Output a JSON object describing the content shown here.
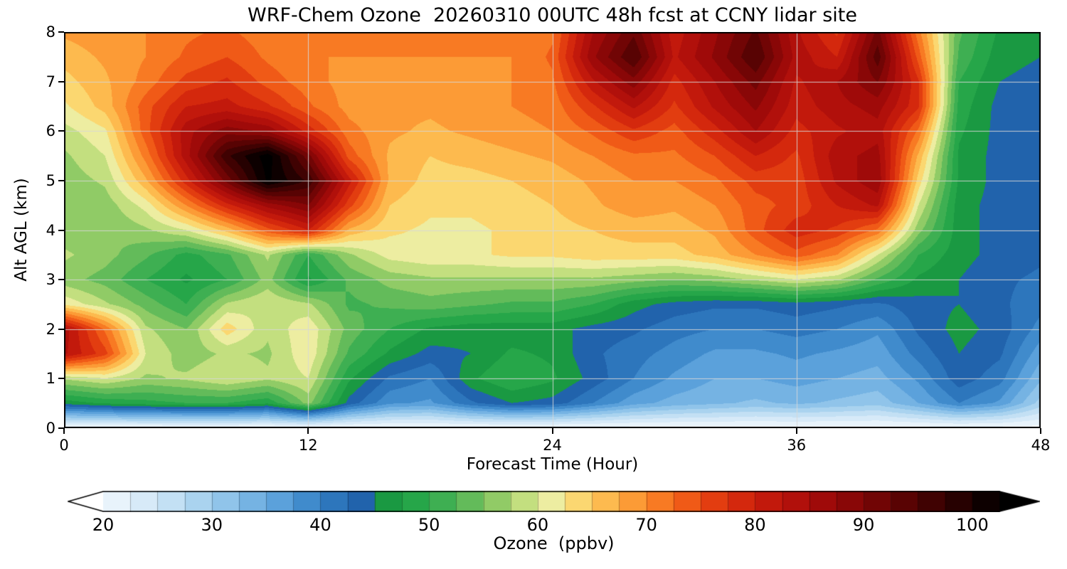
{
  "background": "#ffffff",
  "colorbar": {
    "label": "Ozone  (ppbv)",
    "ticks": [
      20,
      30,
      40,
      50,
      60,
      70,
      80,
      90,
      100
    ],
    "range": [
      20,
      102.5
    ],
    "extend": "both",
    "levels": {
      "min": 17.5,
      "max": 102.5,
      "step": 2.5
    }
  },
  "axes": {
    "x_ticks": [
      0,
      12,
      24,
      36,
      48
    ],
    "y_ticks": [
      0,
      1,
      2,
      3,
      4,
      5,
      6,
      7,
      8
    ],
    "x_range": [
      0,
      48
    ],
    "y_range": [
      0,
      8
    ],
    "grid_x": [
      12,
      24,
      36
    ],
    "grid_y": [
      1,
      2,
      3,
      4,
      5,
      6,
      7
    ]
  },
  "colormap": [
    [
      17.5,
      "#ffffff"
    ],
    [
      21.0,
      "#eaf4fb"
    ],
    [
      25.0,
      "#cfe6f6"
    ],
    [
      29.0,
      "#a8d2ef"
    ],
    [
      33.0,
      "#7db9e6"
    ],
    [
      37.0,
      "#539bd8"
    ],
    [
      40.0,
      "#3380c4"
    ],
    [
      43.0,
      "#2468b0"
    ],
    [
      44.9,
      "#1d5ca6"
    ],
    [
      45.1,
      "#17923e"
    ],
    [
      48.0,
      "#1fa347"
    ],
    [
      52.0,
      "#45b254"
    ],
    [
      55.0,
      "#79c25f"
    ],
    [
      57.5,
      "#a8d46c"
    ],
    [
      59.5,
      "#d3e68b"
    ],
    [
      61.5,
      "#f1eea4"
    ],
    [
      63.5,
      "#fbda74"
    ],
    [
      66.0,
      "#fdbd51"
    ],
    [
      68.5,
      "#fc9e38"
    ],
    [
      71.0,
      "#f97d24"
    ],
    [
      73.5,
      "#f15d18"
    ],
    [
      76.0,
      "#e43f10"
    ],
    [
      79.0,
      "#d2260d"
    ],
    [
      82.0,
      "#bd150c"
    ],
    [
      85.5,
      "#a50b0a"
    ],
    [
      89.0,
      "#870707"
    ],
    [
      92.5,
      "#650404"
    ],
    [
      96.0,
      "#420202"
    ],
    [
      99.5,
      "#1f0101"
    ],
    [
      102.5,
      "#000000"
    ]
  ],
  "chart_data": {
    "type": "heatmap",
    "title": "WRF-Chem Ozone  20260310 00UTC 48h fcst at CCNY lidar site",
    "xlabel": "Forecast Time (Hour)",
    "ylabel": "Alt AGL (km)",
    "value_label": "Ozone (ppbv)",
    "xlim": [
      0,
      48
    ],
    "ylim": [
      0,
      8
    ],
    "x": [
      0,
      2,
      4,
      6,
      8,
      10,
      12,
      14,
      16,
      18,
      20,
      22,
      24,
      26,
      28,
      30,
      32,
      34,
      36,
      38,
      40,
      42,
      44,
      46,
      48
    ],
    "y": [
      0,
      0.5,
      1,
      1.5,
      2,
      2.5,
      3,
      3.5,
      4,
      4.5,
      5,
      5.5,
      6,
      6.5,
      7,
      7.5,
      8
    ],
    "values": [
      [
        19,
        19,
        19,
        19,
        19,
        19,
        19,
        19,
        19,
        19,
        19,
        19,
        19,
        19,
        19,
        19,
        19,
        19,
        19,
        19,
        19,
        19,
        19,
        19,
        19
      ],
      [
        46,
        48,
        49,
        50,
        50,
        48,
        56,
        44,
        38,
        37,
        42,
        45,
        44,
        40,
        36,
        34,
        33,
        32,
        33,
        32,
        31,
        35,
        40,
        37,
        29
      ],
      [
        58,
        60,
        57,
        58,
        60,
        58,
        60,
        48,
        42,
        40,
        47,
        50,
        48,
        44,
        40,
        37,
        35,
        35,
        36,
        35,
        34,
        38,
        44,
        41,
        33
      ],
      [
        83,
        76,
        60,
        56,
        58,
        57,
        62,
        52,
        47,
        44,
        45,
        48,
        47,
        43,
        41,
        39,
        37,
        37,
        38,
        37,
        36,
        41,
        45,
        43,
        36
      ],
      [
        84,
        72,
        58,
        55,
        64,
        58,
        62,
        54,
        50,
        47,
        46,
        46,
        46,
        44,
        43,
        41,
        40,
        40,
        41,
        40,
        38,
        43,
        46,
        44,
        39
      ],
      [
        62,
        58,
        54,
        50,
        58,
        60,
        58,
        52,
        53,
        54,
        53,
        52,
        52,
        50,
        46,
        44,
        43,
        43,
        44,
        43,
        42,
        44,
        45,
        43,
        41
      ],
      [
        56,
        54,
        50,
        47,
        50,
        56,
        47,
        53,
        56,
        57,
        57,
        57,
        57,
        57,
        56,
        55,
        56,
        58,
        60,
        58,
        52,
        47,
        45,
        43,
        42
      ],
      [
        58,
        56,
        53,
        49,
        52,
        58,
        50,
        57,
        61,
        62,
        62,
        63,
        63,
        64,
        64,
        64,
        66,
        70,
        74,
        70,
        60,
        50,
        46,
        44,
        43
      ],
      [
        56,
        55,
        57,
        60,
        66,
        74,
        80,
        67,
        63,
        62,
        62,
        63,
        64,
        65,
        66,
        66,
        68,
        74,
        79,
        77,
        72,
        56,
        46,
        44,
        43
      ],
      [
        55,
        56,
        61,
        70,
        79,
        86,
        90,
        76,
        65,
        63,
        63,
        64,
        65,
        67,
        69,
        68,
        70,
        74,
        76,
        80,
        83,
        60,
        46,
        44,
        43
      ],
      [
        56,
        58,
        67,
        79,
        91,
        103,
        97,
        81,
        67,
        64,
        64,
        65,
        66,
        68,
        70,
        70,
        72,
        76,
        76,
        83,
        87,
        64,
        47,
        44,
        43
      ],
      [
        57,
        60,
        71,
        84,
        97,
        104,
        91,
        74,
        67,
        65,
        66,
        67,
        68,
        70,
        72,
        72,
        75,
        80,
        77,
        84,
        86,
        67,
        47,
        44,
        43
      ],
      [
        59,
        62,
        74,
        84,
        89,
        87,
        79,
        71,
        68,
        67,
        68,
        69,
        70,
        73,
        77,
        74,
        79,
        85,
        79,
        82,
        84,
        72,
        48,
        44,
        43
      ],
      [
        62,
        66,
        74,
        80,
        81,
        78,
        73,
        69,
        68,
        68,
        69,
        70,
        71,
        77,
        83,
        77,
        83,
        88,
        81,
        84,
        86,
        78,
        49,
        44,
        43
      ],
      [
        64,
        67,
        71,
        76,
        78,
        74,
        71,
        69,
        69,
        69,
        69,
        70,
        72,
        82,
        89,
        79,
        85,
        91,
        82,
        85,
        90,
        78,
        50,
        45,
        44
      ],
      [
        66,
        68,
        70,
        73,
        75,
        72,
        70,
        70,
        70,
        70,
        70,
        70,
        73,
        87,
        95,
        82,
        88,
        95,
        84,
        80,
        94,
        74,
        52,
        46,
        45
      ],
      [
        68,
        69,
        70,
        72,
        73,
        71,
        70,
        71,
        72,
        71,
        70,
        70,
        72,
        85,
        92,
        81,
        87,
        93,
        83,
        77,
        91,
        71,
        53,
        47,
        46
      ]
    ]
  }
}
